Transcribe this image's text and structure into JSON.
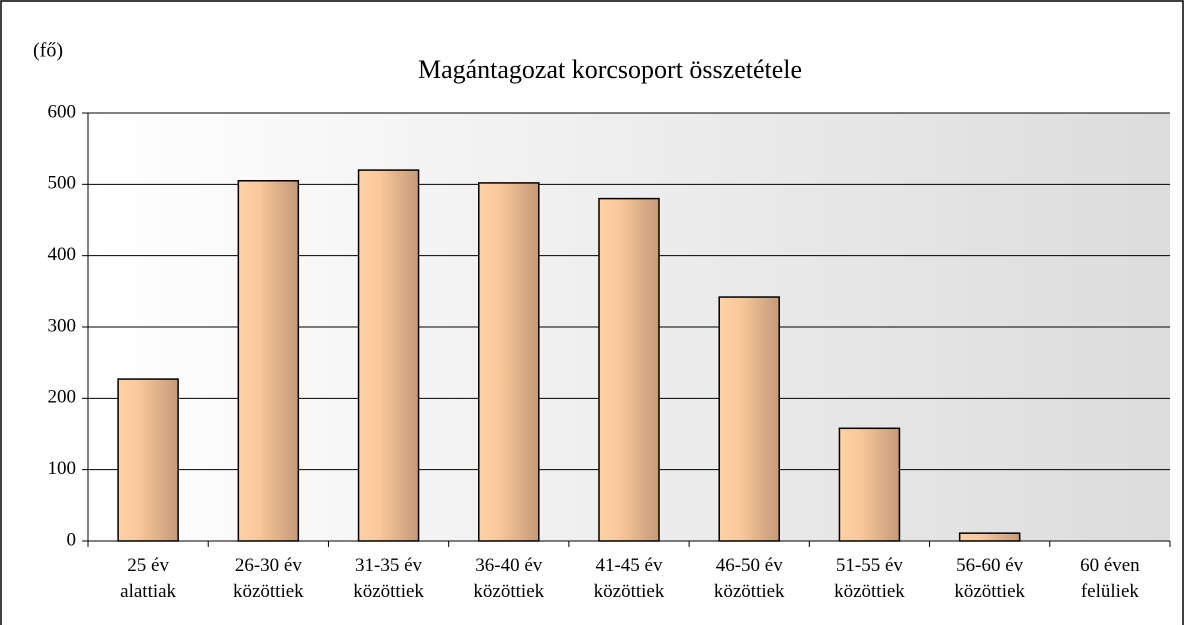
{
  "chart_data": {
    "type": "bar",
    "title": "Magántagozat korcsoport összetétele",
    "y_label": "(fő)",
    "categories": [
      "25 év\nalattiak",
      "26-30 év\nközöttiek",
      "31-35 év\nközöttiek",
      "36-40 év\nközöttiek",
      "41-45 év\nközöttiek",
      "46-50 év\nközöttiek",
      "51-55 év\nközöttiek",
      "56-60 év\nközöttiek",
      "60 éven\nfelüliek"
    ],
    "values": [
      227,
      505,
      520,
      502,
      480,
      342,
      158,
      11,
      0
    ],
    "color": "#f9c79a",
    "ylim": [
      0,
      600
    ],
    "yticks": [
      0,
      100,
      200,
      300,
      400,
      500,
      600
    ],
    "grid": true
  }
}
